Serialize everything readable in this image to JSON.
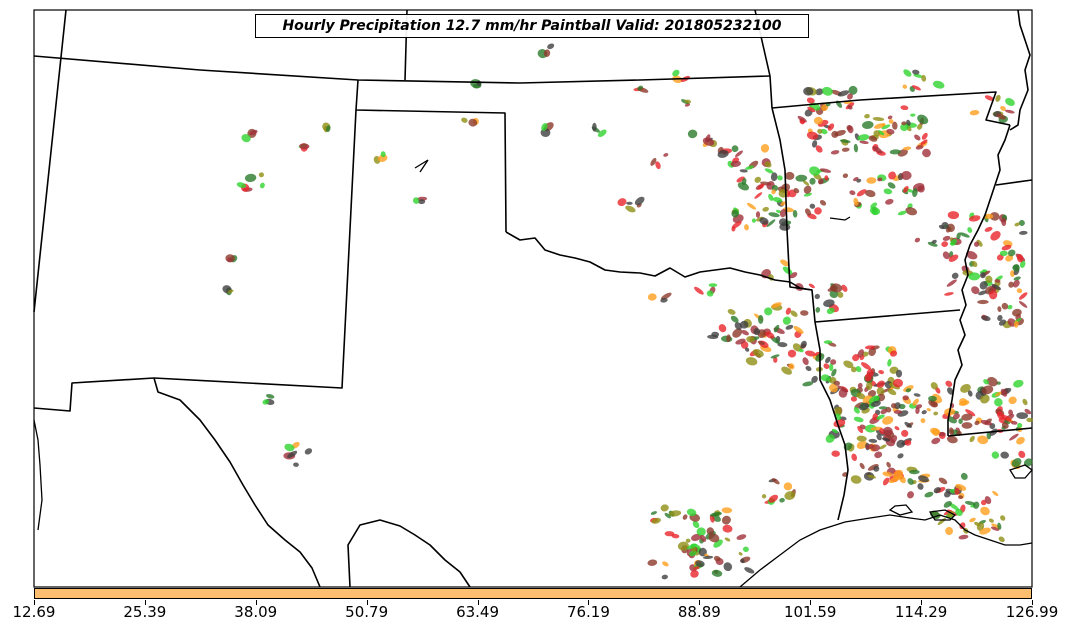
{
  "title": "Hourly Precipitation 12.7 mm/hr Paintball Valid: 201805232100",
  "colorbar": {
    "color": "#fdbf6f",
    "ticks": [
      "12.69",
      "25.39",
      "38.09",
      "50.79",
      "63.49",
      "76.19",
      "88.89",
      "101.59",
      "114.29",
      "126.99"
    ]
  },
  "palette": {
    "red": "#e8242a",
    "orange": "#ff9f1c",
    "green": "#2fd42f",
    "dark_green": "#2a7a2a",
    "olive": "#8f8f14",
    "brown": "#8c3a2a",
    "maroon": "#a0303a",
    "dark_gray": "#404040"
  }
}
